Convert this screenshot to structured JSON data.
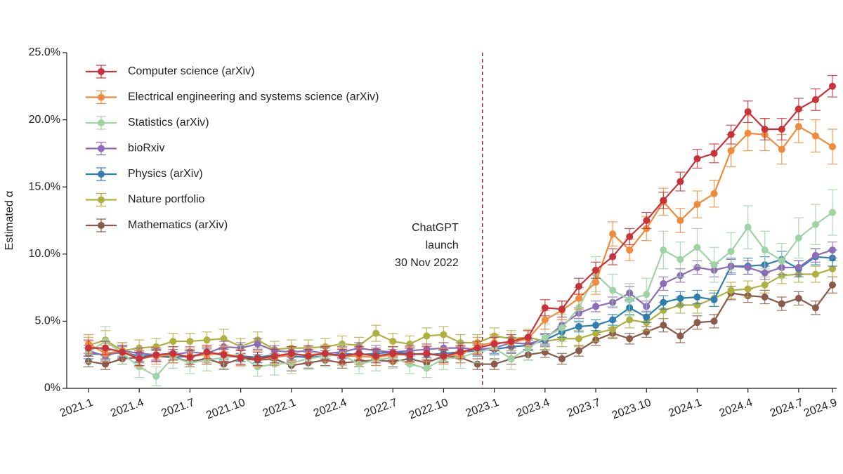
{
  "chart_data": {
    "type": "line",
    "ylabel": "Estimated α",
    "annotation": [
      "ChatGPT",
      "launch",
      "30 Nov 2022"
    ],
    "annotation_color": "#8b2a2a",
    "categories": [
      "2021.1",
      null,
      null,
      "2021.4",
      null,
      null,
      "2021.7",
      null,
      null,
      "2021.10",
      null,
      null,
      "2022.1",
      null,
      null,
      "2022.4",
      null,
      null,
      "2022.7",
      null,
      null,
      "2022.10",
      null,
      null,
      "2023.1",
      null,
      null,
      "2023.4",
      null,
      null,
      "2023.7",
      null,
      null,
      "2023.10",
      null,
      null,
      "2024.1",
      null,
      null,
      "2024.4",
      null,
      null,
      "2024.7",
      null,
      "2024.9"
    ],
    "ylim": [
      0,
      25
    ],
    "yticks": [
      {
        "value": 0,
        "label": "0%"
      },
      {
        "value": 5,
        "label": "5.0%"
      },
      {
        "value": 10,
        "label": "10.0%"
      },
      {
        "value": 15,
        "label": "15.0%"
      },
      {
        "value": 20,
        "label": "20.0%"
      },
      {
        "value": 25,
        "label": "25.0%"
      }
    ],
    "legend": "upper left",
    "series": [
      {
        "name": "Computer science (arXiv)",
        "color": "#c8323a",
        "values": [
          3.0,
          3.0,
          2.7,
          2.2,
          2.5,
          2.6,
          2.3,
          2.7,
          2.5,
          2.3,
          2.2,
          2.4,
          2.6,
          2.4,
          2.6,
          2.4,
          2.6,
          2.4,
          2.6,
          2.5,
          2.6,
          2.4,
          2.7,
          3.0,
          3.3,
          3.5,
          3.8,
          6.0,
          5.9,
          7.6,
          8.8,
          9.8,
          11.3,
          12.5,
          14.0,
          15.4,
          17.1,
          17.5,
          18.9,
          20.6,
          19.3,
          19.3,
          20.8,
          21.5,
          22.5
        ],
        "errors": [
          0.6,
          0.5,
          0.5,
          0.5,
          0.5,
          0.5,
          0.5,
          0.5,
          0.5,
          0.5,
          0.5,
          0.5,
          0.5,
          0.5,
          0.5,
          0.5,
          0.5,
          0.5,
          0.5,
          0.5,
          0.5,
          0.5,
          0.5,
          0.5,
          0.5,
          0.5,
          0.5,
          0.6,
          0.6,
          0.6,
          0.6,
          0.6,
          0.6,
          0.6,
          0.6,
          0.7,
          0.7,
          0.7,
          0.7,
          0.8,
          0.8,
          0.8,
          0.8,
          0.8,
          0.8
        ]
      },
      {
        "name": "Electrical engineering and systems science (arXiv)",
        "color": "#f08a3c",
        "values": [
          3.3,
          2.6,
          2.8,
          2.2,
          2.4,
          2.5,
          2.4,
          2.5,
          2.6,
          2.3,
          2.2,
          2.3,
          2.5,
          2.5,
          2.6,
          2.4,
          2.4,
          2.3,
          2.5,
          2.5,
          2.6,
          2.4,
          2.5,
          3.2,
          3.4,
          3.4,
          3.7,
          5.1,
          5.8,
          6.7,
          7.9,
          11.5,
          10.3,
          11.9,
          13.9,
          12.5,
          13.7,
          14.5,
          17.7,
          19.0,
          18.9,
          17.8,
          19.5,
          18.8,
          18.0
        ],
        "errors": [
          0.7,
          0.6,
          0.6,
          0.6,
          0.6,
          0.6,
          0.6,
          0.6,
          0.6,
          0.6,
          0.6,
          0.6,
          0.6,
          0.6,
          0.6,
          0.6,
          0.6,
          0.6,
          0.6,
          0.6,
          0.6,
          0.6,
          0.6,
          0.6,
          0.6,
          0.6,
          0.6,
          0.7,
          0.7,
          0.8,
          0.9,
          0.9,
          0.8,
          0.9,
          1.0,
          0.9,
          1.0,
          1.0,
          1.2,
          1.3,
          1.2,
          1.1,
          1.2,
          1.2,
          1.3
        ]
      },
      {
        "name": "Statistics (arXiv)",
        "color": "#9fd3a6",
        "values": [
          2.7,
          3.5,
          2.6,
          1.6,
          0.9,
          2.3,
          1.9,
          2.1,
          2.3,
          2.4,
          1.6,
          1.8,
          1.9,
          2.2,
          2.4,
          2.5,
          1.8,
          2.1,
          2.3,
          1.8,
          1.5,
          2.2,
          2.3,
          2.7,
          3.0,
          2.2,
          3.0,
          3.8,
          4.5,
          6.0,
          8.5,
          7.3,
          6.6,
          7.0,
          10.3,
          9.6,
          10.5,
          9.2,
          10.2,
          12.0,
          10.3,
          9.5,
          11.2,
          12.2,
          13.1
        ],
        "errors": [
          0.8,
          1.1,
          0.8,
          0.8,
          0.7,
          0.8,
          0.8,
          0.8,
          0.8,
          0.8,
          0.7,
          0.8,
          0.8,
          0.8,
          0.8,
          0.8,
          0.7,
          0.8,
          0.8,
          0.7,
          0.7,
          0.8,
          0.8,
          0.8,
          0.9,
          0.8,
          0.9,
          1.0,
          1.0,
          1.1,
          1.3,
          1.2,
          1.2,
          1.2,
          1.4,
          1.3,
          1.4,
          1.3,
          1.4,
          1.6,
          1.4,
          1.3,
          1.5,
          1.5,
          1.7
        ]
      },
      {
        "name": "bioRxiv",
        "color": "#8e6bb8",
        "values": [
          2.8,
          2.4,
          2.8,
          2.6,
          2.5,
          2.5,
          2.7,
          2.6,
          3.1,
          3.0,
          3.3,
          2.8,
          2.7,
          2.8,
          2.6,
          2.7,
          3.0,
          2.8,
          2.7,
          2.8,
          2.9,
          3.0,
          3.0,
          2.9,
          3.0,
          3.4,
          3.3,
          3.7,
          4.7,
          5.6,
          6.1,
          6.4,
          7.1,
          6.1,
          7.8,
          8.4,
          9.0,
          8.8,
          9.1,
          9.0,
          8.6,
          9.0,
          9.0,
          9.9,
          10.3
        ],
        "errors": [
          0.4,
          0.4,
          0.4,
          0.4,
          0.4,
          0.4,
          0.4,
          0.4,
          0.4,
          0.4,
          0.4,
          0.4,
          0.4,
          0.4,
          0.4,
          0.4,
          0.4,
          0.4,
          0.4,
          0.4,
          0.4,
          0.4,
          0.4,
          0.4,
          0.4,
          0.4,
          0.4,
          0.4,
          0.4,
          0.4,
          0.4,
          0.4,
          0.5,
          0.4,
          0.5,
          0.5,
          0.5,
          0.5,
          0.5,
          0.5,
          0.5,
          0.5,
          0.5,
          0.5,
          0.6
        ]
      },
      {
        "name": "Physics (arXiv)",
        "color": "#2e7fb0",
        "values": [
          2.6,
          2.5,
          2.7,
          2.4,
          2.5,
          2.3,
          2.4,
          2.6,
          2.5,
          2.4,
          2.3,
          2.5,
          2.4,
          2.3,
          2.4,
          2.6,
          2.5,
          2.6,
          2.7,
          2.6,
          2.5,
          2.6,
          2.7,
          2.8,
          2.9,
          3.1,
          3.2,
          3.6,
          4.2,
          4.6,
          4.7,
          5.1,
          6.0,
          5.3,
          6.4,
          6.7,
          6.8,
          6.6,
          9.1,
          9.1,
          9.2,
          9.6,
          8.9,
          9.8,
          9.7
        ],
        "errors": [
          0.4,
          0.4,
          0.4,
          0.4,
          0.4,
          0.4,
          0.4,
          0.4,
          0.4,
          0.4,
          0.4,
          0.4,
          0.4,
          0.4,
          0.4,
          0.4,
          0.4,
          0.4,
          0.4,
          0.4,
          0.4,
          0.4,
          0.4,
          0.4,
          0.4,
          0.4,
          0.4,
          0.4,
          0.4,
          0.4,
          0.4,
          0.4,
          0.5,
          0.4,
          0.5,
          0.5,
          0.5,
          0.5,
          0.6,
          0.6,
          0.6,
          0.6,
          0.6,
          0.6,
          0.6
        ]
      },
      {
        "name": "Nature portfolio",
        "color": "#b0b040",
        "values": [
          3.2,
          3.6,
          2.8,
          3.0,
          3.1,
          3.5,
          3.5,
          3.6,
          3.7,
          3.1,
          3.6,
          2.9,
          3.0,
          3.0,
          3.1,
          3.3,
          3.2,
          4.1,
          3.5,
          3.3,
          3.9,
          4.0,
          3.4,
          3.4,
          3.9,
          3.7,
          3.8,
          3.5,
          3.7,
          3.7,
          4.1,
          4.4,
          5.1,
          4.9,
          5.8,
          6.2,
          6.2,
          6.7,
          7.3,
          7.4,
          7.7,
          8.4,
          8.5,
          8.5,
          8.9
        ],
        "errors": [
          0.6,
          0.7,
          0.6,
          0.6,
          0.6,
          0.6,
          0.6,
          0.6,
          0.7,
          0.6,
          0.6,
          0.6,
          0.6,
          0.6,
          0.6,
          0.6,
          0.6,
          0.6,
          0.6,
          0.6,
          0.6,
          0.6,
          0.6,
          0.6,
          0.6,
          0.6,
          0.6,
          0.6,
          0.6,
          0.6,
          0.6,
          0.6,
          0.6,
          0.6,
          0.6,
          0.6,
          0.6,
          0.6,
          0.6,
          0.6,
          0.6,
          0.6,
          0.6,
          0.6,
          0.6
        ]
      },
      {
        "name": "Mathematics (arXiv)",
        "color": "#8c5a4a",
        "values": [
          2.0,
          1.8,
          2.2,
          2.3,
          2.4,
          2.3,
          2.0,
          2.2,
          1.8,
          2.2,
          2.1,
          2.2,
          1.7,
          1.9,
          2.1,
          1.9,
          2.0,
          2.1,
          2.0,
          2.2,
          1.9,
          2.4,
          2.3,
          1.8,
          1.8,
          2.2,
          2.5,
          2.7,
          2.2,
          2.8,
          3.6,
          4.1,
          3.7,
          4.2,
          4.7,
          3.9,
          4.9,
          5.0,
          7.1,
          6.9,
          6.8,
          6.3,
          6.7,
          6.0,
          7.7
        ],
        "errors": [
          0.4,
          0.4,
          0.4,
          0.4,
          0.4,
          0.4,
          0.4,
          0.4,
          0.4,
          0.4,
          0.4,
          0.4,
          0.4,
          0.4,
          0.4,
          0.4,
          0.4,
          0.4,
          0.4,
          0.4,
          0.4,
          0.4,
          0.4,
          0.4,
          0.4,
          0.4,
          0.4,
          0.4,
          0.4,
          0.4,
          0.4,
          0.4,
          0.4,
          0.4,
          0.5,
          0.5,
          0.5,
          0.5,
          0.5,
          0.5,
          0.5,
          0.5,
          0.5,
          0.5,
          0.6
        ]
      }
    ]
  }
}
